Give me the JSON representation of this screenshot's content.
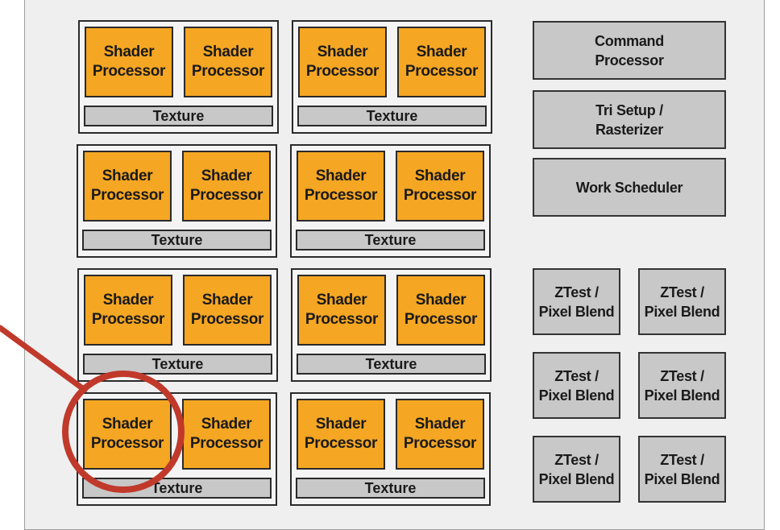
{
  "labels": {
    "shader_line1": "Shader",
    "shader_line2": "Processor",
    "texture": "Texture",
    "command_line1": "Command",
    "command_line2": "Processor",
    "tri_line1": "Tri Setup /",
    "tri_line2": "Rasterizer",
    "work_scheduler": "Work Scheduler",
    "ztest_line1": "ZTest /",
    "ztest_line2": "Pixel Blend"
  },
  "layout": {
    "cluster_rows": 4,
    "cluster_cols": 2,
    "shader_processors_per_cluster": 2,
    "ztest_rows": 3,
    "ztest_cols": 2,
    "highlighted": "cluster-4-1 shader-processor-left"
  },
  "colors": {
    "shader_processor": "#f5a623",
    "fixed_function": "#c8c8c8",
    "chip_background": "#efefef",
    "highlight": "#c0392b"
  }
}
